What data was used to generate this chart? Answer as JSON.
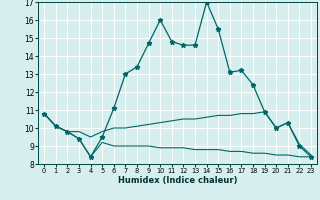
{
  "xlabel": "Humidex (Indice chaleur)",
  "xlim": [
    -0.5,
    23.5
  ],
  "ylim": [
    8,
    17
  ],
  "yticks": [
    8,
    9,
    10,
    11,
    12,
    13,
    14,
    15,
    16,
    17
  ],
  "xticks": [
    0,
    1,
    2,
    3,
    4,
    5,
    6,
    7,
    8,
    9,
    10,
    11,
    12,
    13,
    14,
    15,
    16,
    17,
    18,
    19,
    20,
    21,
    22,
    23
  ],
  "bg_color": "#d6eeee",
  "grid_color": "#ffffff",
  "line_color": "#006666",
  "series_main_x": [
    0,
    1,
    2,
    3,
    4,
    5,
    6,
    7,
    8,
    9,
    10,
    11,
    12,
    13,
    14,
    15,
    16,
    17,
    18,
    19,
    20,
    21,
    22,
    23
  ],
  "series_main_y": [
    10.8,
    10.1,
    9.8,
    9.4,
    8.4,
    9.5,
    11.1,
    13.0,
    13.4,
    14.7,
    16.0,
    14.8,
    14.6,
    14.6,
    17.0,
    15.5,
    13.1,
    13.2,
    12.4,
    10.9,
    10.0,
    10.3,
    9.0,
    8.4
  ],
  "series_upper_x": [
    0,
    1,
    2,
    3,
    4,
    5,
    6,
    7,
    8,
    9,
    10,
    11,
    12,
    13,
    14,
    15,
    16,
    17,
    18,
    19,
    20,
    21,
    22,
    23
  ],
  "series_upper_y": [
    10.8,
    10.1,
    9.8,
    9.8,
    9.5,
    9.8,
    10.0,
    10.0,
    10.1,
    10.2,
    10.3,
    10.4,
    10.5,
    10.5,
    10.6,
    10.7,
    10.7,
    10.8,
    10.8,
    10.9,
    10.0,
    10.3,
    9.1,
    8.5
  ],
  "series_lower_x": [
    0,
    1,
    2,
    3,
    4,
    5,
    6,
    7,
    8,
    9,
    10,
    11,
    12,
    13,
    14,
    15,
    16,
    17,
    18,
    19,
    20,
    21,
    22,
    23
  ],
  "series_lower_y": [
    10.8,
    10.1,
    9.8,
    9.4,
    8.4,
    9.2,
    9.0,
    9.0,
    9.0,
    9.0,
    8.9,
    8.9,
    8.9,
    8.8,
    8.8,
    8.8,
    8.7,
    8.7,
    8.6,
    8.6,
    8.5,
    8.5,
    8.4,
    8.4
  ]
}
